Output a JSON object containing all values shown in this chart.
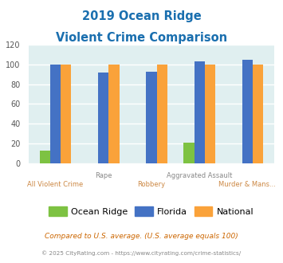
{
  "title_line1": "2019 Ocean Ridge",
  "title_line2": "Violent Crime Comparison",
  "categories": [
    "All Violent Crime",
    "Rape",
    "Robbery",
    "Aggravated Assault",
    "Murder & Mans..."
  ],
  "ocean_ridge": [
    13,
    0,
    0,
    21,
    0
  ],
  "florida": [
    100,
    92,
    93,
    103,
    105
  ],
  "national": [
    100,
    100,
    100,
    100,
    100
  ],
  "bar_color_or": "#7dc242",
  "bar_color_fl": "#4472c4",
  "bar_color_na": "#faa23a",
  "title_color": "#1a6faf",
  "xlabel_color_gray": "#888888",
  "xlabel_color_orange": "#cc8844",
  "bg_color": "#e0eff0",
  "ylim": [
    0,
    120
  ],
  "yticks": [
    0,
    20,
    40,
    60,
    80,
    100,
    120
  ],
  "footnote1": "Compared to U.S. average. (U.S. average equals 100)",
  "footnote2": "© 2025 CityRating.com - https://www.cityrating.com/crime-statistics/",
  "footnote1_color": "#cc6600",
  "footnote2_color": "#888888",
  "legend_labels": [
    "Ocean Ridge",
    "Florida",
    "National"
  ],
  "row1_labels": [
    "",
    "Rape",
    "",
    "Aggravated Assault",
    ""
  ],
  "row2_labels": [
    "All Violent Crime",
    "",
    "Robbery",
    "",
    "Murder & Mans..."
  ]
}
